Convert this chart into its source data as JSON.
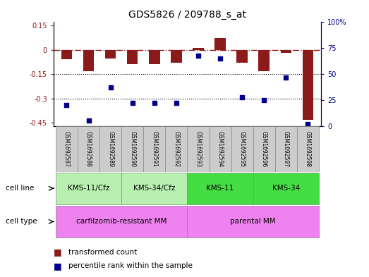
{
  "title": "GDS5826 / 209788_s_at",
  "samples": [
    "GSM1692587",
    "GSM1692588",
    "GSM1692589",
    "GSM1692590",
    "GSM1692591",
    "GSM1692592",
    "GSM1692593",
    "GSM1692594",
    "GSM1692595",
    "GSM1692596",
    "GSM1692597",
    "GSM1692598"
  ],
  "transformed_count": [
    -0.06,
    -0.13,
    -0.055,
    -0.09,
    -0.09,
    -0.08,
    0.01,
    0.07,
    -0.08,
    -0.13,
    -0.02,
    -0.43
  ],
  "percentile_rank": [
    20,
    5,
    37,
    22,
    22,
    22,
    68,
    65,
    28,
    25,
    47,
    2
  ],
  "ylim_left": [
    -0.47,
    0.17
  ],
  "ylim_right": [
    0,
    100
  ],
  "yticks_left": [
    0.15,
    0.0,
    -0.15,
    -0.3,
    -0.45
  ],
  "yticks_right": [
    100,
    75,
    50,
    25,
    0
  ],
  "dotted_lines": [
    -0.15,
    -0.3
  ],
  "cell_line_groups": [
    {
      "label": "KMS-11/Cfz",
      "start": 0,
      "end": 3,
      "color": "#b8f0b0"
    },
    {
      "label": "KMS-34/Cfz",
      "start": 3,
      "end": 6,
      "color": "#b8f0b0"
    },
    {
      "label": "KMS-11",
      "start": 6,
      "end": 9,
      "color": "#44dd44"
    },
    {
      "label": "KMS-34",
      "start": 9,
      "end": 12,
      "color": "#44dd44"
    }
  ],
  "cell_type_groups": [
    {
      "label": "carfilzomib-resistant MM",
      "start": 0,
      "end": 6,
      "color": "#ee82ee"
    },
    {
      "label": "parental MM",
      "start": 6,
      "end": 12,
      "color": "#ee82ee"
    }
  ],
  "bar_color": "#8b1a1a",
  "dot_color": "#00008b",
  "bar_width": 0.5,
  "background_color": "#ffffff",
  "legend_red_label": "transformed count",
  "legend_blue_label": "percentile rank within the sample"
}
